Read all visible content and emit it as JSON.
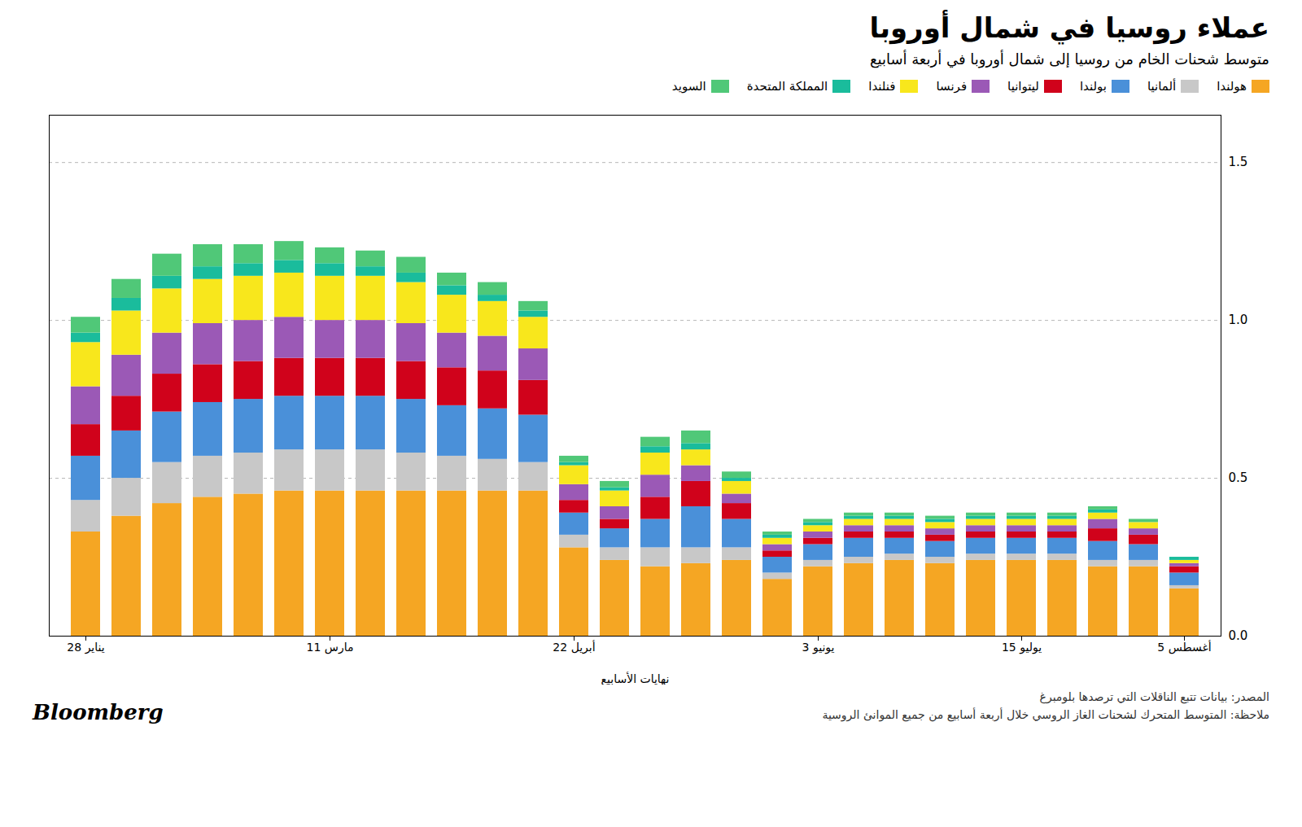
{
  "chart_data": {
    "type": "bar",
    "stacked": true,
    "title": "عملاء روسيا في شمال أوروبا",
    "subtitle": "متوسط شحنات الخام من روسيا إلى شمال أوروبا في أربعة أسابيع",
    "x_label": "نهايات الأسابيع",
    "annotations": [
      "المصدر: بيانات تتبع الناقلات التي ترصدها بلومبرغ",
      "ملاحظة: المتوسط المتحرك لشحنات الغاز الروسي خلال أربعة أسابيع من جميع الموانئ الروسية",
      "Bloomberg"
    ],
    "categories": [
      "28 يناير",
      null,
      null,
      null,
      null,
      null,
      "11 مارس",
      null,
      null,
      null,
      null,
      null,
      "22 أبريل",
      null,
      null,
      null,
      null,
      null,
      "3 يونيو",
      null,
      null,
      null,
      null,
      "15 يوليو",
      null,
      null,
      null,
      "5 أغسطس"
    ],
    "series": [
      {
        "name": "هولندا",
        "color": "#F5A623",
        "values": [
          0.33,
          0.38,
          0.42,
          0.44,
          0.45,
          0.46,
          0.46,
          0.46,
          0.46,
          0.46,
          0.46,
          0.46,
          0.28,
          0.24,
          0.22,
          0.23,
          0.24,
          0.18,
          0.22,
          0.23,
          0.24,
          0.23,
          0.24,
          0.24,
          0.24,
          0.22,
          0.22,
          0.15
        ]
      },
      {
        "name": "ألمانيا",
        "color": "#C8C8C8",
        "values": [
          0.1,
          0.12,
          0.13,
          0.13,
          0.13,
          0.13,
          0.13,
          0.13,
          0.12,
          0.11,
          0.1,
          0.09,
          0.04,
          0.04,
          0.06,
          0.05,
          0.04,
          0.02,
          0.02,
          0.02,
          0.02,
          0.02,
          0.02,
          0.02,
          0.02,
          0.02,
          0.02,
          0.01
        ]
      },
      {
        "name": "بولندا",
        "color": "#4A90D9",
        "values": [
          0.14,
          0.15,
          0.16,
          0.17,
          0.17,
          0.17,
          0.17,
          0.17,
          0.17,
          0.16,
          0.16,
          0.15,
          0.07,
          0.06,
          0.09,
          0.13,
          0.09,
          0.05,
          0.05,
          0.06,
          0.05,
          0.05,
          0.05,
          0.05,
          0.05,
          0.06,
          0.05,
          0.04
        ]
      },
      {
        "name": "ليتوانيا",
        "color": "#D0021B",
        "values": [
          0.1,
          0.11,
          0.12,
          0.12,
          0.12,
          0.12,
          0.12,
          0.12,
          0.12,
          0.12,
          0.12,
          0.11,
          0.04,
          0.03,
          0.07,
          0.08,
          0.05,
          0.02,
          0.02,
          0.02,
          0.02,
          0.02,
          0.02,
          0.02,
          0.02,
          0.04,
          0.03,
          0.02
        ]
      },
      {
        "name": "فرنسا",
        "color": "#9B59B6",
        "values": [
          0.12,
          0.13,
          0.13,
          0.13,
          0.13,
          0.13,
          0.12,
          0.12,
          0.12,
          0.11,
          0.11,
          0.1,
          0.05,
          0.04,
          0.07,
          0.05,
          0.03,
          0.02,
          0.02,
          0.02,
          0.02,
          0.02,
          0.02,
          0.02,
          0.02,
          0.03,
          0.02,
          0.01
        ]
      },
      {
        "name": "فنلندا",
        "color": "#F8E71C",
        "values": [
          0.14,
          0.14,
          0.14,
          0.14,
          0.14,
          0.14,
          0.14,
          0.14,
          0.13,
          0.12,
          0.11,
          0.1,
          0.06,
          0.05,
          0.07,
          0.05,
          0.04,
          0.02,
          0.02,
          0.02,
          0.02,
          0.02,
          0.02,
          0.02,
          0.02,
          0.02,
          0.02,
          0.01
        ]
      },
      {
        "name": "المملكة المتحدة",
        "color": "#1ABC9C",
        "values": [
          0.03,
          0.04,
          0.04,
          0.04,
          0.04,
          0.04,
          0.04,
          0.03,
          0.03,
          0.03,
          0.02,
          0.02,
          0.01,
          0.01,
          0.02,
          0.02,
          0.01,
          0.01,
          0.01,
          0.01,
          0.01,
          0.01,
          0.01,
          0.01,
          0.01,
          0.01,
          0.0,
          0.01
        ]
      },
      {
        "name": "السويد",
        "color": "#50C878",
        "values": [
          0.05,
          0.06,
          0.07,
          0.07,
          0.06,
          0.06,
          0.05,
          0.05,
          0.05,
          0.04,
          0.04,
          0.03,
          0.02,
          0.02,
          0.03,
          0.04,
          0.02,
          0.01,
          0.01,
          0.01,
          0.01,
          0.01,
          0.01,
          0.01,
          0.01,
          0.01,
          0.01,
          0.0
        ]
      }
    ],
    "ylim": [
      0,
      1.65
    ],
    "yticks": [
      {
        "value": 0,
        "label": "0.0"
      },
      0.5,
      {
        "value": 1.0,
        "label": "1.0"
      },
      1.5
    ],
    "grid": true,
    "legend": "top"
  }
}
